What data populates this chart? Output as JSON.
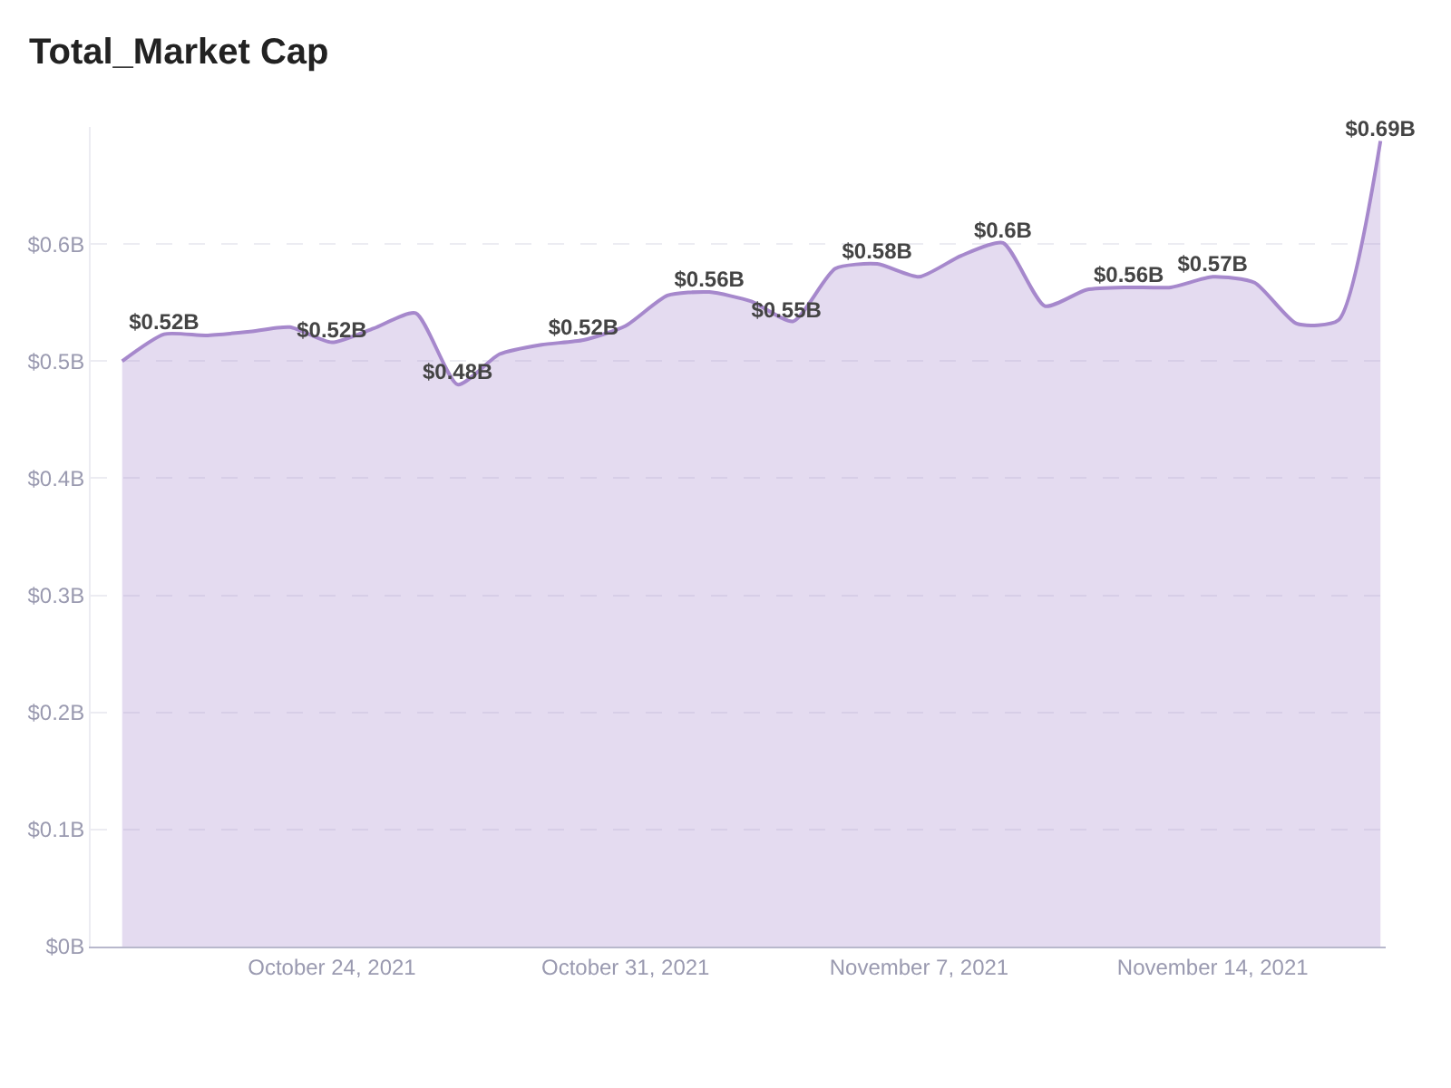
{
  "chart_data": {
    "type": "area",
    "title": "Total_Market Cap",
    "x": [
      "2021-10-19",
      "2021-10-20",
      "2021-10-21",
      "2021-10-22",
      "2021-10-23",
      "2021-10-24",
      "2021-10-25",
      "2021-10-26",
      "2021-10-27",
      "2021-10-28",
      "2021-10-29",
      "2021-10-30",
      "2021-10-31",
      "2021-11-01",
      "2021-11-02",
      "2021-11-03",
      "2021-11-04",
      "2021-11-05",
      "2021-11-06",
      "2021-11-07",
      "2021-11-08",
      "2021-11-09",
      "2021-11-10",
      "2021-11-11",
      "2021-11-12",
      "2021-11-13",
      "2021-11-14",
      "2021-11-15",
      "2021-11-16",
      "2021-11-17",
      "2021-11-18"
    ],
    "series": [
      {
        "color": "#a688cc",
        "values": [
          0.5,
          0.523,
          0.522,
          0.525,
          0.529,
          0.516,
          0.528,
          0.541,
          0.48,
          0.506,
          0.514,
          0.518,
          0.53,
          0.556,
          0.559,
          0.551,
          0.534,
          0.579,
          0.583,
          0.572,
          0.59,
          0.601,
          0.547,
          0.561,
          0.563,
          0.563,
          0.572,
          0.567,
          0.532,
          0.535,
          0.688
        ],
        "value_labels": [
          null,
          "$0.52B",
          null,
          null,
          null,
          "$0.52B",
          null,
          null,
          "$0.48B",
          null,
          null,
          "$0.52B",
          null,
          null,
          "$0.56B",
          "$0.55B",
          null,
          null,
          "$0.58B",
          null,
          null,
          "$0.6B",
          null,
          null,
          "$0.56B",
          null,
          "$0.57B",
          null,
          null,
          null,
          "$0.69B"
        ]
      }
    ],
    "xlim": [
      "2021-10-18T06:00",
      "2021-11-18T03:00"
    ],
    "xticks": [
      {
        "value": "2021-10-24",
        "label": "October 24, 2021"
      },
      {
        "value": "2021-10-31",
        "label": "October 31, 2021"
      },
      {
        "value": "2021-11-07",
        "label": "November 7, 2021"
      },
      {
        "value": "2021-11-14",
        "label": "November 14, 2021"
      }
    ],
    "yticks": [
      {
        "value": 0,
        "label": "$0B"
      },
      {
        "value": 0.1,
        "label": "$0.1B"
      },
      {
        "value": 0.2,
        "label": "$0.2B"
      },
      {
        "value": 0.3,
        "label": "$0.3B"
      },
      {
        "value": 0.4,
        "label": "$0.4B"
      },
      {
        "value": 0.5,
        "label": "$0.5B"
      },
      {
        "value": 0.6,
        "label": "$0.6B"
      }
    ],
    "ylim": [
      0,
      0.7
    ],
    "grid": "y",
    "marker": "none",
    "line_style": "solid"
  }
}
